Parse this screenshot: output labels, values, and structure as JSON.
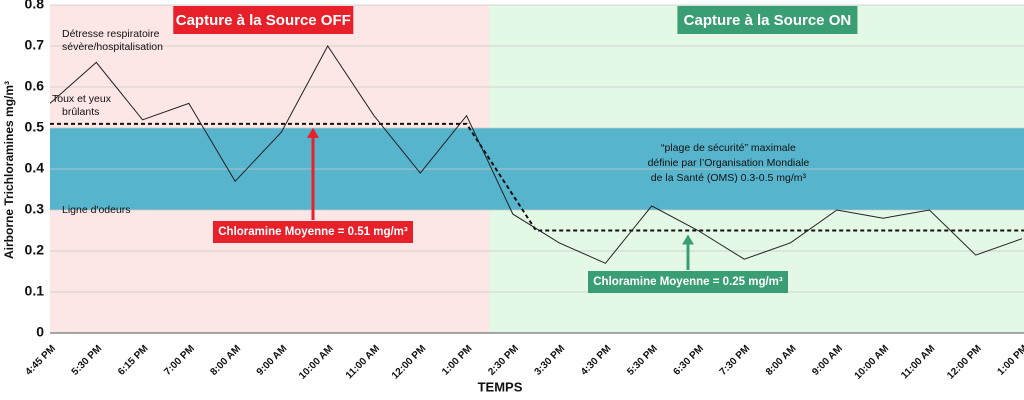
{
  "chart_data": {
    "type": "line",
    "y_label": "Airborne Trichloramines mg/m³",
    "x_label": "TEMPS",
    "ylim": [
      0,
      0.8
    ],
    "yticks": [
      0,
      0.1,
      0.2,
      0.3,
      0.4,
      0.5,
      0.6,
      0.7,
      0.8
    ],
    "grid": true,
    "line_color": "#222222",
    "regions": [
      {
        "label": "Capture à la Source OFF",
        "color": "#fde6e6",
        "label_color": "#e8202a",
        "categories": [
          "4:45 PM",
          "5:30 PM",
          "6:15 PM",
          "7:00 PM",
          "8:00 AM",
          "9:00 AM",
          "10:00 AM",
          "11:00 AM",
          "12:00 PM",
          "1:00 PM"
        ],
        "values": [
          0.56,
          0.66,
          0.52,
          0.56,
          0.37,
          0.49,
          0.7,
          0.53,
          0.39,
          0.53
        ],
        "mean": 0.51,
        "mean_label": "Chloramine Moyenne = 0.51 mg/m³"
      },
      {
        "label": "Capture à la Source ON",
        "color": "#e4f8e6",
        "label_color": "#3a9e74",
        "categories": [
          "2:30 PM",
          "3:30 PM",
          "4:30 PM",
          "5:30 PM",
          "6:30 PM",
          "7:30 PM",
          "8:00 AM",
          "9:00 AM",
          "10:00 AM",
          "11:00 AM",
          "12:00 PM",
          "1:00 PM"
        ],
        "values": [
          0.29,
          0.22,
          0.17,
          0.31,
          0.25,
          0.18,
          0.22,
          0.3,
          0.28,
          0.3,
          0.19,
          0.23
        ],
        "mean": 0.25,
        "mean_label": "Chloramine Moyenne  = 0.25 mg/m³"
      }
    ],
    "safe_band": {
      "from": 0.3,
      "to": 0.5,
      "color": "#56b4cc",
      "lines": [
        "“plage de sécurité” maximale",
        "définie par l’Organisation Mondiale",
        "de la Santé (OMS) 0.3-0.5 mg/m³"
      ]
    },
    "levels": [
      {
        "value": 0.7,
        "lines": [
          "Détresse respiratoire",
          "sévère/hospitalisation"
        ]
      },
      {
        "value": 0.5,
        "lines": [
          "Toux et yeux",
          "brûlants"
        ]
      },
      {
        "value": 0.3,
        "lines": [
          "Ligne d'odeurs"
        ]
      }
    ]
  }
}
